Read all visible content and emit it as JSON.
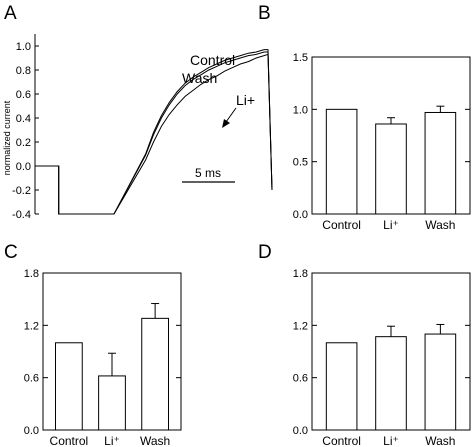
{
  "chart_data": [
    {
      "panel": "A",
      "type": "line",
      "ylabel": "normalized current",
      "yticks": [
        "1.0",
        "0.8",
        "0.6",
        "0.4",
        "0.2",
        "0.0",
        "-0.2",
        "-0.4"
      ],
      "ylim": [
        -0.4,
        1.05
      ],
      "grid": false,
      "scale_bar_label": "5 ms",
      "series": [
        {
          "name": "Control",
          "x": [
            0,
            3,
            3,
            10,
            10,
            14,
            15,
            16,
            17,
            18,
            19,
            20,
            21,
            22,
            23,
            24,
            25,
            26,
            27,
            28,
            29,
            29.5,
            30
          ],
          "y": [
            0,
            0,
            -0.4,
            -0.4,
            -0.4,
            0.1,
            0.28,
            0.42,
            0.53,
            0.62,
            0.69,
            0.74,
            0.78,
            0.82,
            0.85,
            0.88,
            0.9,
            0.92,
            0.94,
            0.95,
            0.97,
            0.97,
            -0.2
          ]
        },
        {
          "name": "Wash",
          "x": [
            0,
            3,
            3,
            10,
            10,
            14,
            15,
            16,
            17,
            18,
            19,
            20,
            21,
            22,
            23,
            24,
            25,
            26,
            27,
            28,
            29,
            29.5,
            30
          ],
          "y": [
            0,
            0,
            -0.4,
            -0.4,
            -0.4,
            0.09,
            0.26,
            0.4,
            0.51,
            0.6,
            0.67,
            0.72,
            0.76,
            0.8,
            0.83,
            0.86,
            0.88,
            0.9,
            0.92,
            0.93,
            0.95,
            0.95,
            -0.2
          ]
        },
        {
          "name": "Li+",
          "x": [
            0,
            3,
            3,
            10,
            10,
            14,
            15,
            16,
            17,
            18,
            19,
            20,
            21,
            22,
            23,
            24,
            25,
            26,
            27,
            28,
            29,
            29.5,
            30
          ],
          "y": [
            0,
            0,
            -0.4,
            -0.4,
            -0.4,
            0.05,
            0.2,
            0.33,
            0.43,
            0.51,
            0.58,
            0.63,
            0.68,
            0.72,
            0.75,
            0.79,
            0.82,
            0.85,
            0.87,
            0.9,
            0.92,
            0.93,
            -0.2
          ]
        }
      ]
    },
    {
      "panel": "B",
      "type": "bar",
      "categories": [
        "Control",
        "Li⁺",
        "Wash"
      ],
      "values": [
        1.0,
        0.86,
        0.97
      ],
      "errors": [
        0,
        0.06,
        0.06
      ],
      "ylim": [
        0.0,
        1.5
      ],
      "yticks": [
        "0.0",
        "0.5",
        "1.0",
        "1.5"
      ]
    },
    {
      "panel": "C",
      "type": "bar",
      "categories": [
        "Control",
        "Li⁺",
        "Wash"
      ],
      "values": [
        1.0,
        0.62,
        1.28
      ],
      "errors": [
        0,
        0.26,
        0.17
      ],
      "ylim": [
        0.0,
        1.8
      ],
      "yticks": [
        "0.0",
        "0.6",
        "1.2",
        "1.8"
      ]
    },
    {
      "panel": "D",
      "type": "bar",
      "categories": [
        "Control",
        "Li⁺",
        "Wash"
      ],
      "values": [
        1.0,
        1.07,
        1.1
      ],
      "errors": [
        0,
        0.12,
        0.11
      ],
      "ylim": [
        0.0,
        1.8
      ],
      "yticks": [
        "0.0",
        "0.6",
        "1.2",
        "1.8"
      ]
    }
  ],
  "panel_labels": {
    "a": "A",
    "b": "B",
    "c": "C",
    "d": "D"
  },
  "annotations": {
    "control": "Control",
    "wash": "Wash",
    "li": "Li+"
  }
}
